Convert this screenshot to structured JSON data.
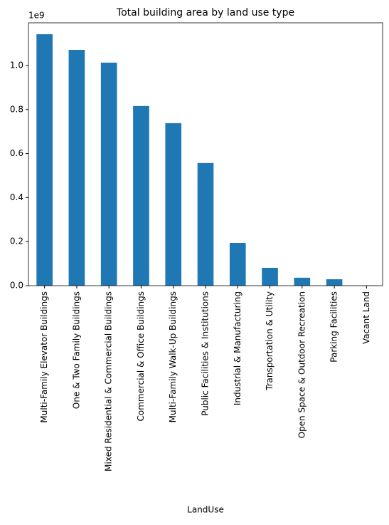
{
  "chart_data": {
    "type": "bar",
    "title": "Total building area by land use type",
    "x_label": "LandUse",
    "y_offset_label": "1e9",
    "categories": [
      "Multi-Family Elevator Buildings",
      "One & Two Family Buildings",
      "Mixed Residential & Commercial Buildings",
      "Commercial & Office Buildings",
      "Multi-Family Walk-Up Buildings",
      "Public Facilities & Institutions",
      "Industrial & Manufacturing",
      "Transportation & Utility",
      "Open Space & Outdoor Recreation",
      "Parking Facilities",
      "Vacant Land"
    ],
    "values": [
      1.142,
      1.071,
      1.013,
      0.816,
      0.738,
      0.557,
      0.194,
      0.081,
      0.036,
      0.029,
      0.001
    ],
    "color": "#1f77b4",
    "ylim": [
      0,
      1.194
    ],
    "yticks": [
      {
        "value": 0,
        "label": "0.0"
      },
      {
        "value": 0.2,
        "label": "0.2"
      },
      {
        "value": 0.4,
        "label": "0.4"
      },
      {
        "value": 0.6,
        "label": "0.6"
      },
      {
        "value": 0.8,
        "label": "0.8"
      },
      {
        "value": 1,
        "label": "1.0"
      }
    ],
    "grid": false
  }
}
